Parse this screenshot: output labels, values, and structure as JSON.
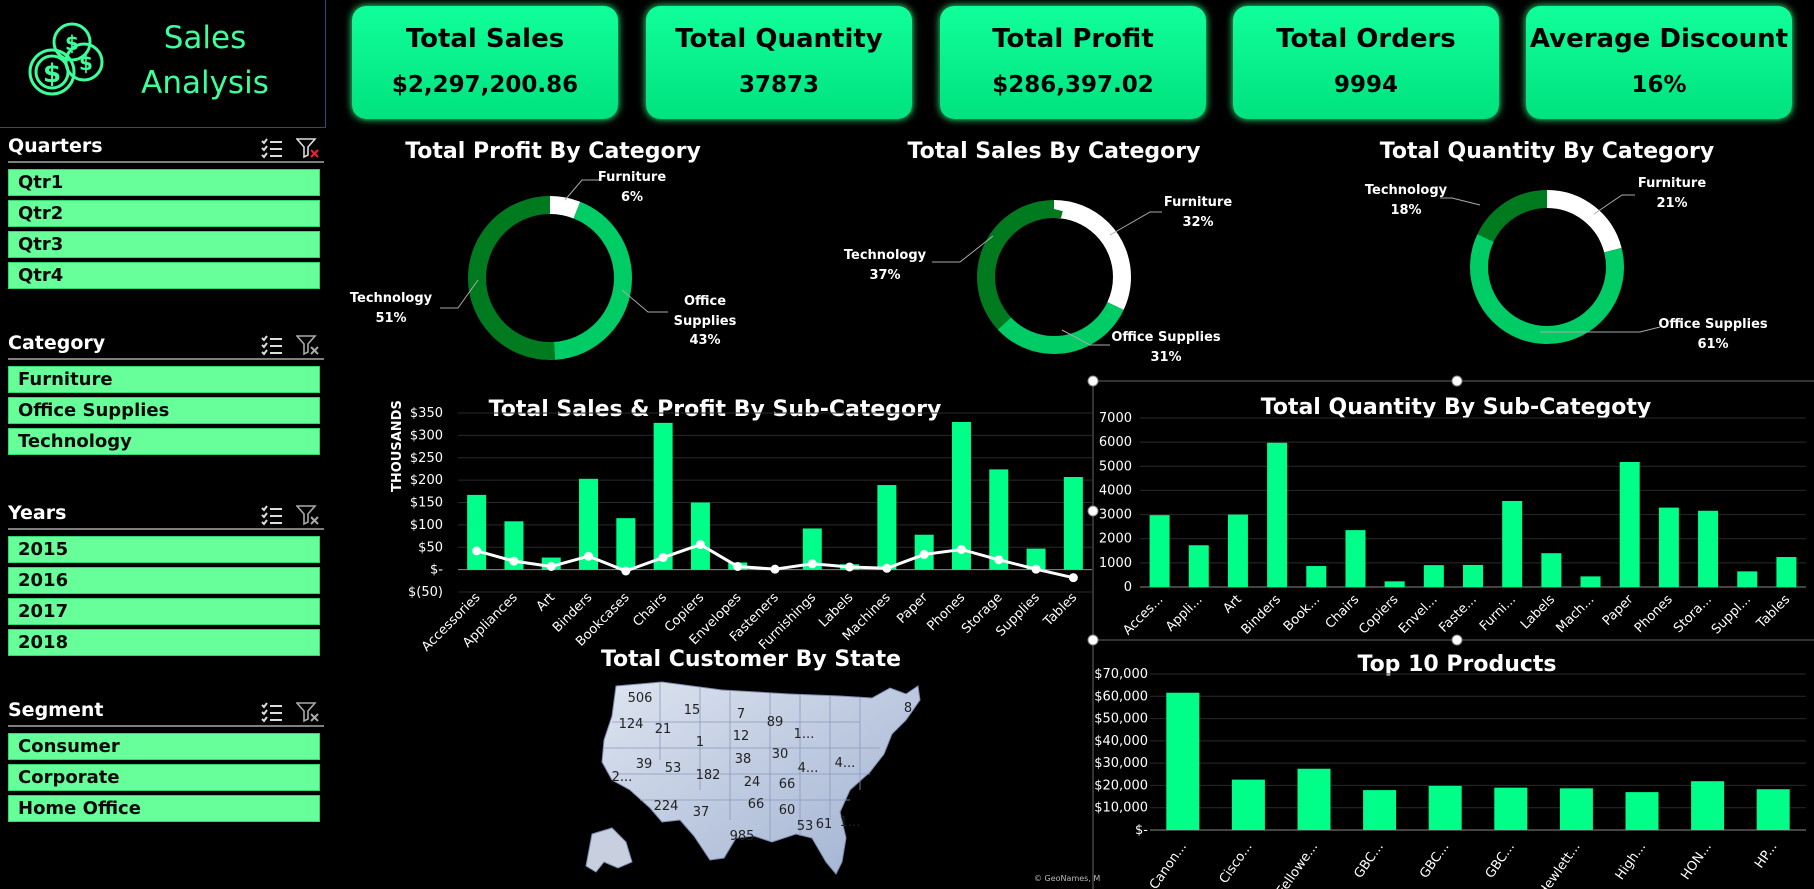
{
  "dashboard": {
    "title_line1": "Sales",
    "title_line2": "Analysis",
    "accent_color": "#3dff9a",
    "bar_color": "#00ff88",
    "card_color": "#10ff9a"
  },
  "kpis": [
    {
      "label": "Total Sales",
      "value": "$2,297,200.86"
    },
    {
      "label": "Total Quantity",
      "value": "37873"
    },
    {
      "label": "Total Profit",
      "value": "$286,397.02"
    },
    {
      "label": "Total Orders",
      "value": "9994"
    },
    {
      "label": "Average Discount",
      "value": "16%"
    }
  ],
  "slicers": {
    "quarters": {
      "title": "Quarters",
      "items": [
        "Qtr1",
        "Qtr2",
        "Qtr3",
        "Qtr4"
      ]
    },
    "category": {
      "title": "Category",
      "items": [
        "Furniture",
        "Office Supplies",
        "Technology"
      ]
    },
    "years": {
      "title": "Years",
      "items": [
        "2015",
        "2016",
        "2017",
        "2018"
      ]
    },
    "segment": {
      "title": "Segment",
      "items": [
        "Consumer",
        "Corporate",
        "Home Office"
      ]
    }
  },
  "chart_data": [
    {
      "type": "pie",
      "title": "Total Profit By Category",
      "categories": [
        "Furniture",
        "Office Supplies",
        "Technology"
      ],
      "values": [
        6,
        43,
        51
      ],
      "labels": [
        "6%",
        "43%",
        "51%"
      ],
      "colors": [
        "#ffffff",
        "#00cc66",
        "#007a1f"
      ]
    },
    {
      "type": "pie",
      "title": "Total Sales By Category",
      "categories": [
        "Furniture",
        "Office Supplies",
        "Technology"
      ],
      "values": [
        32,
        31,
        37
      ],
      "labels": [
        "32%",
        "31%",
        "37%"
      ],
      "colors": [
        "#ffffff",
        "#00cc66",
        "#007a1f"
      ]
    },
    {
      "type": "pie",
      "title": "Total Quantity By Category",
      "categories": [
        "Furniture",
        "Office Supplies",
        "Technology"
      ],
      "values": [
        21,
        61,
        18
      ],
      "labels": [
        "21%",
        "61%",
        "18%"
      ],
      "colors": [
        "#ffffff",
        "#00cc66",
        "#007a1f"
      ]
    },
    {
      "type": "bar",
      "title": "Total Sales & Profit By Sub-Category",
      "ylabel": "THOUSANDS",
      "ylim": [
        -50,
        350
      ],
      "yticks": [
        "$(50)",
        "$-",
        "$50",
        "$100",
        "$150",
        "$200",
        "$250",
        "$300",
        "$350"
      ],
      "categories": [
        "Accessories",
        "Appliances",
        "Art",
        "Binders",
        "Bookcases",
        "Chairs",
        "Copiers",
        "Envelopes",
        "Fasteners",
        "Furnishings",
        "Labels",
        "Machines",
        "Paper",
        "Phones",
        "Storage",
        "Supplies",
        "Tables"
      ],
      "series": [
        {
          "values": [
            167,
            108,
            27,
            203,
            115,
            328,
            150,
            16,
            3,
            92,
            12,
            189,
            78,
            330,
            224,
            47,
            207
          ]
        },
        {
          "type": "line",
          "values": [
            42,
            19,
            7,
            30,
            -3,
            27,
            56,
            7,
            1,
            13,
            6,
            3,
            34,
            45,
            22,
            1,
            -18
          ]
        }
      ]
    },
    {
      "type": "bar",
      "title": "Total Quantity By Sub-Categoty",
      "ylim": [
        0,
        7000
      ],
      "yticks": [
        "0",
        "1000",
        "2000",
        "3000",
        "4000",
        "5000",
        "6000",
        "7000"
      ],
      "categories": [
        "Acces...",
        "Appli...",
        "Art",
        "Binders",
        "Book...",
        "Chairs",
        "Copiers",
        "Envel...",
        "Faste...",
        "Furni...",
        "Labels",
        "Mach...",
        "Paper",
        "Phones",
        "Stora...",
        "Suppl...",
        "Tables"
      ],
      "values": [
        2976,
        1729,
        3000,
        5974,
        868,
        2356,
        234,
        906,
        914,
        3563,
        1400,
        440,
        5178,
        3289,
        3158,
        647,
        1241
      ]
    },
    {
      "type": "bar",
      "title": "Top 10 Products",
      "ylim": [
        0,
        70000
      ],
      "yticks": [
        "$-",
        "$10,000",
        "$20,000",
        "$30,000",
        "$40,000",
        "$50,000",
        "$60,000",
        "$70,000"
      ],
      "categories": [
        "Canon...",
        "Cisco...",
        "Fellowe...",
        "GBC...",
        "GBC...",
        "GBC...",
        "Hewlett...",
        "High...",
        "HON...",
        "HP..."
      ],
      "values": [
        61600,
        22600,
        27500,
        17900,
        19800,
        19000,
        18700,
        17000,
        21900,
        18300
      ]
    }
  ],
  "map": {
    "title": "Total Customer By State",
    "attribution": "© GeoNames, M",
    "state_labels": [
      "506",
      "15",
      "7",
      "89",
      "8",
      "124",
      "21",
      "1",
      "12",
      "1...",
      "39",
      "53",
      "38",
      "30",
      "2...",
      "182",
      "24",
      "66",
      "4...",
      "4...",
      "224",
      "37",
      "66",
      "60",
      "985",
      "53",
      "61",
      "1..."
    ]
  }
}
